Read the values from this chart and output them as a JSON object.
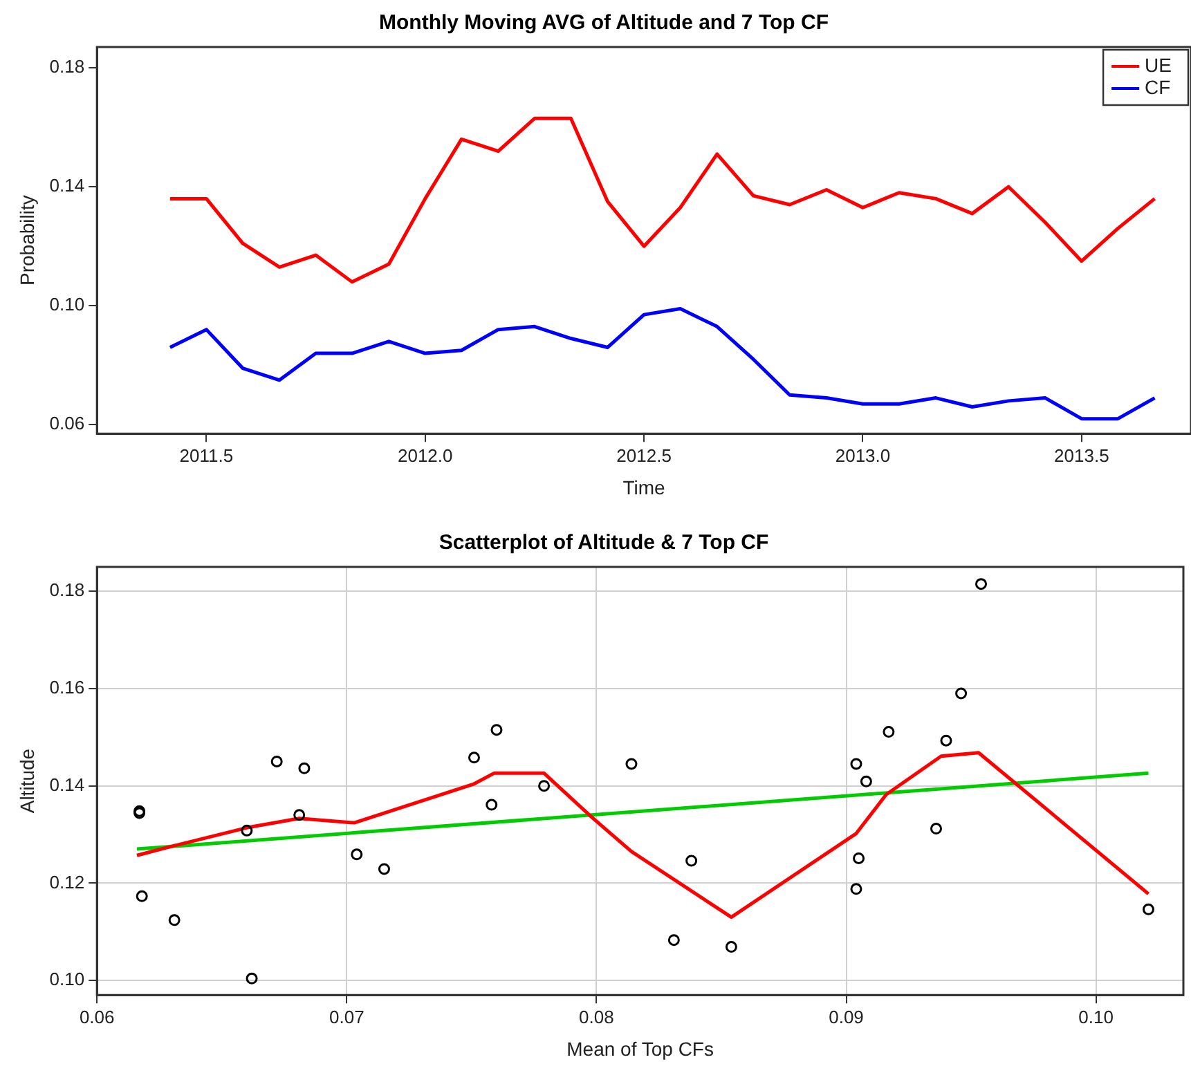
{
  "chart_data": [
    {
      "type": "line",
      "title": "Monthly Moving AVG of Altitude and 7 Top CF",
      "xlabel": "Time",
      "ylabel": "Probability",
      "x": [
        2011.417,
        2011.5,
        2011.583,
        2011.667,
        2011.75,
        2011.833,
        2011.917,
        2012.0,
        2012.083,
        2012.167,
        2012.25,
        2012.333,
        2012.417,
        2012.5,
        2012.583,
        2012.667,
        2012.75,
        2012.833,
        2012.917,
        2013.0,
        2013.083,
        2013.167,
        2013.25,
        2013.333,
        2013.417,
        2013.5,
        2013.583,
        2013.667
      ],
      "series": [
        {
          "name": "UE",
          "color": "#ff0000",
          "values": [
            0.136,
            0.136,
            0.121,
            0.113,
            0.117,
            0.108,
            0.114,
            0.136,
            0.156,
            0.152,
            0.163,
            0.163,
            0.135,
            0.12,
            0.133,
            0.151,
            0.137,
            0.134,
            0.139,
            0.133,
            0.138,
            0.136,
            0.131,
            0.14,
            0.128,
            0.115,
            0.126,
            0.136
          ]
        },
        {
          "name": "CF",
          "color": "#0000ff",
          "values": [
            0.086,
            0.092,
            0.079,
            0.075,
            0.084,
            0.084,
            0.088,
            0.084,
            0.085,
            0.092,
            0.093,
            0.089,
            0.086,
            0.097,
            0.099,
            0.093,
            0.082,
            0.07,
            0.069,
            0.067,
            0.067,
            0.069,
            0.066,
            0.068,
            0.069,
            0.062,
            0.062,
            0.069
          ]
        }
      ],
      "xlim": [
        2011.25,
        2013.75
      ],
      "xticks": [
        2011.5,
        {
          "value": 2012,
          "label": "2012.0"
        },
        2012.5,
        {
          "value": 2013,
          "label": "2013.0"
        },
        2013.5
      ],
      "ylim": [
        0.057,
        0.187
      ],
      "yticks": [
        0.06,
        {
          "value": 0.1,
          "label": "0.10"
        },
        0.14,
        0.18
      ],
      "grid": false,
      "legend": "top right",
      "marker": "none",
      "line_style": "solid"
    },
    {
      "type": "scatter",
      "title": "Scatterplot of Altitude & 7 Top CF",
      "xlabel": "Mean of Top CFs",
      "ylabel": "Altitude",
      "series": [
        {
          "color": "#000000",
          "marker": "circle",
          "x": [
            0.0617,
            0.0617,
            0.0618,
            0.0631,
            0.066,
            0.0662,
            0.0672,
            0.0683,
            0.0681,
            0.0704,
            0.0715,
            0.0751,
            0.076,
            0.0758,
            0.0779,
            0.0814,
            0.0838,
            0.0831,
            0.0854,
            0.0904,
            0.0905,
            0.0904,
            0.0908,
            0.0917,
            0.0936,
            0.094,
            0.0946,
            0.0954,
            0.1021
          ],
          "values": [
            0.1348,
            0.1344,
            0.1173,
            0.1124,
            0.1308,
            0.1004,
            0.145,
            0.1436,
            0.134,
            0.1259,
            0.1229,
            0.1458,
            0.1515,
            0.1361,
            0.14,
            0.1445,
            0.1246,
            0.1083,
            0.1069,
            0.1188,
            0.1251,
            0.1445,
            0.1409,
            0.1511,
            0.1312,
            0.1493,
            0.159,
            0.1815,
            0.1146
          ]
        },
        {
          "type": "line",
          "color": "#ff0000",
          "marker": "none",
          "x": [
            0.0616,
            0.0631,
            0.0661,
            0.0681,
            0.0703,
            0.0751,
            0.0759,
            0.0779,
            0.0798,
            0.0814,
            0.0854,
            0.0904,
            0.0916,
            0.0938,
            0.0953,
            0.1021
          ],
          "values": [
            0.1257,
            0.1277,
            0.1315,
            0.1333,
            0.1324,
            0.1404,
            0.1426,
            0.1426,
            0.1336,
            0.1265,
            0.113,
            0.1302,
            0.1382,
            0.1461,
            0.1468,
            0.1178
          ]
        },
        {
          "type": "line",
          "color": "#00cc00",
          "marker": "none",
          "x": [
            0.0616,
            0.1021
          ],
          "values": [
            0.127,
            0.1426
          ]
        }
      ],
      "xlim": [
        0.06,
        0.1035
      ],
      "xticks": [
        0.06,
        0.07,
        0.08,
        0.09,
        {
          "value": 0.1,
          "label": "0.10"
        }
      ],
      "ylim": [
        0.097,
        0.185
      ],
      "yticks": [
        {
          "value": 0.1,
          "label": "0.10"
        },
        0.12,
        0.14,
        0.16,
        0.18
      ],
      "grid": true,
      "legend": false,
      "line_style": "solid"
    }
  ]
}
